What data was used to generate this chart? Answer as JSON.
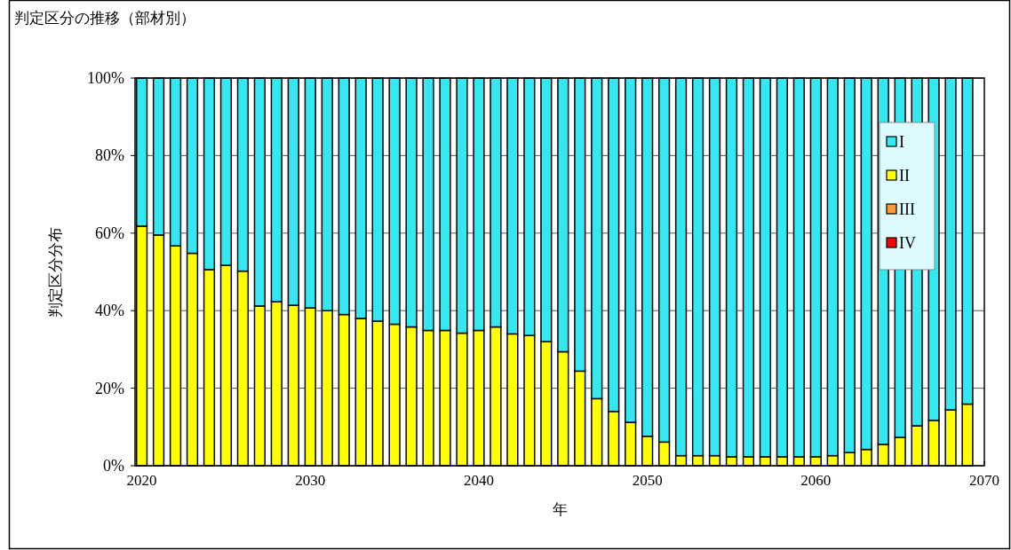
{
  "chart_data": {
    "type": "bar",
    "stacked": true,
    "title": "判定区分の推移（部材別）",
    "xlabel": "年",
    "ylabel": "判定区分分布",
    "x": [
      2020,
      2021,
      2022,
      2023,
      2024,
      2025,
      2026,
      2027,
      2028,
      2029,
      2030,
      2031,
      2032,
      2033,
      2034,
      2035,
      2036,
      2037,
      2038,
      2039,
      2040,
      2041,
      2042,
      2043,
      2044,
      2045,
      2046,
      2047,
      2048,
      2049,
      2050,
      2051,
      2052,
      2053,
      2054,
      2055,
      2056,
      2057,
      2058,
      2059,
      2060,
      2061,
      2062,
      2063,
      2064,
      2065,
      2066,
      2067,
      2068,
      2069
    ],
    "series": [
      {
        "name": "IV",
        "color": "#ff0000",
        "values": [
          0,
          0,
          0,
          0,
          0,
          0,
          0,
          0,
          0,
          0,
          0,
          0,
          0,
          0,
          0,
          0,
          0,
          0,
          0,
          0,
          0,
          0,
          0,
          0,
          0,
          0,
          0,
          0,
          0,
          0,
          0,
          0,
          0,
          0,
          0,
          0,
          0,
          0,
          0,
          0,
          0,
          0,
          0,
          0,
          0,
          0,
          0,
          0,
          0,
          0
        ]
      },
      {
        "name": "III",
        "color": "#ff9933",
        "values": [
          0,
          0,
          0,
          0,
          0,
          0,
          0,
          0,
          0,
          0,
          0,
          0,
          0,
          0,
          0,
          0,
          0,
          0,
          0,
          0,
          0,
          0,
          0,
          0,
          0,
          0,
          0,
          0,
          0,
          0,
          0,
          0,
          0,
          0,
          0,
          0,
          0,
          0,
          0,
          0,
          0,
          0,
          0,
          0,
          0,
          0,
          0,
          0,
          0,
          0
        ]
      },
      {
        "name": "II",
        "color": "#ffff00",
        "values": [
          61.8,
          59.5,
          56.7,
          54.8,
          50.6,
          51.7,
          50.2,
          41.2,
          42.3,
          41.4,
          40.7,
          40.0,
          39.0,
          38.0,
          37.3,
          36.5,
          35.8,
          34.9,
          34.9,
          34.2,
          34.9,
          35.8,
          34.0,
          33.6,
          32.0,
          29.4,
          24.4,
          17.3,
          14.0,
          11.2,
          7.6,
          6.1,
          2.6,
          2.6,
          2.6,
          2.3,
          2.3,
          2.3,
          2.3,
          2.3,
          2.3,
          2.6,
          3.4,
          4.2,
          5.5,
          7.3,
          10.3,
          11.7,
          14.4,
          15.9
        ]
      },
      {
        "name": "I",
        "color": "#33e8f0",
        "values": [
          38.2,
          40.5,
          43.3,
          45.2,
          49.4,
          48.3,
          49.8,
          58.8,
          57.7,
          58.6,
          59.3,
          60.0,
          61.0,
          62.0,
          62.7,
          63.5,
          64.2,
          65.1,
          65.1,
          65.8,
          65.1,
          64.2,
          66.0,
          66.4,
          68.0,
          70.6,
          75.6,
          82.7,
          86.0,
          88.8,
          92.4,
          93.9,
          97.4,
          97.4,
          97.4,
          97.7,
          97.7,
          97.7,
          97.7,
          97.7,
          97.7,
          97.4,
          96.6,
          95.8,
          94.5,
          92.7,
          89.7,
          88.3,
          85.6,
          84.1
        ]
      }
    ],
    "xlim": [
      2019.6,
      2070
    ],
    "xticks": [
      2020,
      2030,
      2040,
      2050,
      2060,
      2070
    ],
    "ylim": [
      0,
      100
    ],
    "yticks": [
      {
        "value": 0,
        "label": "0%"
      },
      {
        "value": 20,
        "label": "20%"
      },
      {
        "value": 40,
        "label": "40%"
      },
      {
        "value": 60,
        "label": "60%"
      },
      {
        "value": 80,
        "label": "80%"
      },
      {
        "value": 100,
        "label": "100%"
      }
    ],
    "grid": "y",
    "legend": "top right"
  }
}
